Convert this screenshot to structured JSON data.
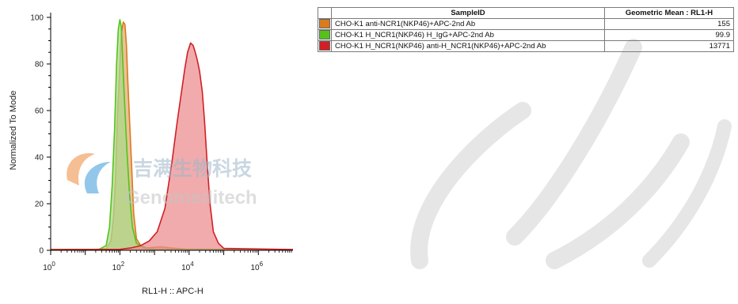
{
  "chart_data": {
    "type": "area",
    "title": "",
    "xlabel": "RL1-H :: APC-H",
    "ylabel": "Normalized To Mode",
    "x_scale": "log10",
    "xlim": [
      1,
      10000000
    ],
    "ylim": [
      0,
      100
    ],
    "x_tick_labels": [
      {
        "base": "10",
        "exp": "0",
        "value": 1
      },
      {
        "base": "10",
        "exp": "2",
        "value": 100
      },
      {
        "base": "10",
        "exp": "4",
        "value": 10000
      },
      {
        "base": "10",
        "exp": "6",
        "value": 1000000
      }
    ],
    "y_ticks": [
      0,
      20,
      40,
      60,
      80,
      100
    ],
    "series": [
      {
        "name": "CHO-K1 anti-NCR1(NKP46)+APC-2nd Ab",
        "color": "#d97b1e",
        "fill": "#e3a970",
        "points": [
          [
            1,
            0.3
          ],
          [
            20,
            0.4
          ],
          [
            40,
            0.6
          ],
          [
            55,
            4
          ],
          [
            65,
            14
          ],
          [
            75,
            32
          ],
          [
            85,
            58
          ],
          [
            100,
            80
          ],
          [
            110,
            93
          ],
          [
            125,
            98
          ],
          [
            140,
            97
          ],
          [
            155,
            88
          ],
          [
            170,
            72
          ],
          [
            190,
            56
          ],
          [
            215,
            38
          ],
          [
            250,
            16
          ],
          [
            300,
            5
          ],
          [
            400,
            2
          ],
          [
            600,
            1
          ],
          [
            1500,
            1.5
          ],
          [
            3000,
            1
          ],
          [
            8000,
            0.5
          ],
          [
            50000,
            0.4
          ],
          [
            10000000,
            0.3
          ]
        ]
      },
      {
        "name": "CHO-K1 H_NCR1(NKP46) H_IgG+APC-2nd Ab",
        "color": "#55c21b",
        "fill": "#a9d98a",
        "points": [
          [
            1,
            0.3
          ],
          [
            25,
            0.4
          ],
          [
            40,
            2
          ],
          [
            50,
            10
          ],
          [
            60,
            28
          ],
          [
            70,
            52
          ],
          [
            80,
            80
          ],
          [
            90,
            95
          ],
          [
            100,
            99
          ],
          [
            110,
            96
          ],
          [
            120,
            82
          ],
          [
            135,
            65
          ],
          [
            160,
            42
          ],
          [
            190,
            24
          ],
          [
            230,
            10
          ],
          [
            300,
            3
          ],
          [
            500,
            1
          ],
          [
            1000,
            0.5
          ],
          [
            10000000,
            0.3
          ]
        ]
      },
      {
        "name": "CHO-K1 H_NCR1(NKP46) anti-H_NCR1(NKP46)+APC-2nd Ab",
        "color": "#d21f25",
        "fill": "#ec8b8c",
        "points": [
          [
            1,
            0.3
          ],
          [
            100,
            0.4
          ],
          [
            200,
            1
          ],
          [
            400,
            2
          ],
          [
            700,
            4
          ],
          [
            1200,
            8
          ],
          [
            2000,
            18
          ],
          [
            3200,
            38
          ],
          [
            4500,
            55
          ],
          [
            6000,
            68
          ],
          [
            7500,
            78
          ],
          [
            9000,
            85
          ],
          [
            11000,
            89
          ],
          [
            13000,
            88
          ],
          [
            15000,
            85
          ],
          [
            17000,
            82
          ],
          [
            20000,
            77
          ],
          [
            24000,
            68
          ],
          [
            28000,
            55
          ],
          [
            33000,
            38
          ],
          [
            40000,
            20
          ],
          [
            50000,
            8
          ],
          [
            70000,
            3
          ],
          [
            100000,
            0.8
          ],
          [
            10000000,
            0.3
          ]
        ]
      }
    ],
    "legend_table": {
      "columns": [
        "SampleID",
        "Geometric Mean : RL1-H"
      ],
      "rows": [
        {
          "sample": "CHO-K1 anti-NCR1(NKP46)+APC-2nd Ab",
          "geometric_mean": "155",
          "color": "#d97b1e"
        },
        {
          "sample": "CHO-K1 H_NCR1(NKP46) H_IgG+APC-2nd Ab",
          "geometric_mean": "99.9",
          "color": "#55c21b"
        },
        {
          "sample": "CHO-K1 H_NCR1(NKP46) anti-H_NCR1(NKP46)+APC-2nd Ab",
          "geometric_mean": "13771",
          "color": "#d21f25"
        }
      ]
    }
  },
  "watermark": {
    "text_cn": "吉满生物科技",
    "text_en": "Genomeditech"
  }
}
